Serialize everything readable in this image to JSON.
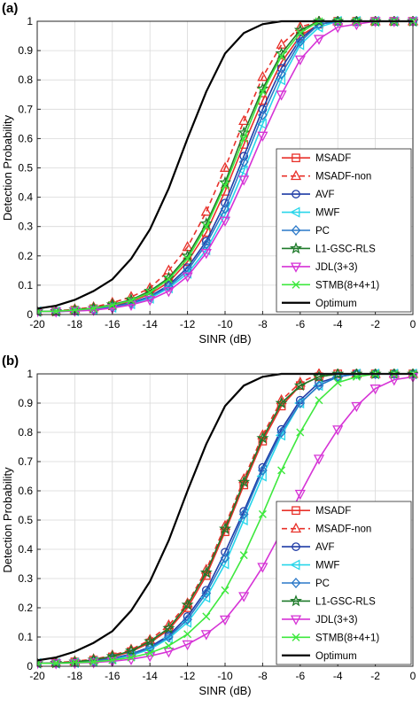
{
  "chart_data": [
    {
      "panel_label": "(a)",
      "type": "line",
      "xlabel": "SINR (dB)",
      "ylabel": "Detection Probability",
      "xlim": [
        -20,
        0
      ],
      "ylim": [
        0,
        1
      ],
      "grid": true,
      "legend_position": "bottom-right",
      "x": [
        -20,
        -19,
        -18,
        -17,
        -16,
        -15,
        -14,
        -13,
        -12,
        -11,
        -10,
        -9,
        -8,
        -7,
        -6,
        -5,
        -4,
        -3,
        -2,
        -1,
        0
      ],
      "xticks": [
        "-20",
        "-18",
        "-16",
        "-14",
        "-12",
        "-10",
        "-8",
        "-6",
        "-4",
        "-2",
        "0"
      ],
      "yticks": [
        "0",
        "0.1",
        "0.2",
        "0.3",
        "0.4",
        "0.5",
        "0.6",
        "0.7",
        "0.8",
        "0.9",
        "1"
      ],
      "series": [
        {
          "name": "MSADF",
          "color": "#e8312a",
          "dash": "solid",
          "marker": "square",
          "values": [
            0.01,
            0.01,
            0.015,
            0.02,
            0.03,
            0.045,
            0.07,
            0.11,
            0.18,
            0.28,
            0.42,
            0.58,
            0.73,
            0.86,
            0.95,
            0.99,
            1,
            1,
            1,
            1,
            1
          ]
        },
        {
          "name": "MSADF-non",
          "color": "#e8312a",
          "dash": "dashed",
          "marker": "triangle-up",
          "values": [
            0.01,
            0.012,
            0.018,
            0.025,
            0.04,
            0.06,
            0.09,
            0.15,
            0.23,
            0.35,
            0.5,
            0.66,
            0.81,
            0.92,
            0.98,
            1,
            1,
            1,
            1,
            1,
            1
          ]
        },
        {
          "name": "AVF",
          "color": "#1f3ba6",
          "dash": "solid",
          "marker": "circle",
          "values": [
            0.01,
            0.01,
            0.013,
            0.018,
            0.027,
            0.04,
            0.062,
            0.1,
            0.16,
            0.25,
            0.38,
            0.54,
            0.7,
            0.84,
            0.94,
            0.99,
            1,
            1,
            1,
            1,
            1
          ]
        },
        {
          "name": "MWF",
          "color": "#28d6ea",
          "dash": "solid",
          "marker": "triangle-left",
          "values": [
            0.01,
            0.01,
            0.012,
            0.016,
            0.024,
            0.036,
            0.055,
            0.09,
            0.14,
            0.22,
            0.34,
            0.49,
            0.65,
            0.8,
            0.92,
            0.98,
            1,
            1,
            1,
            1,
            1
          ]
        },
        {
          "name": "PC",
          "color": "#2a78c8",
          "dash": "solid",
          "marker": "diamond",
          "values": [
            0.01,
            0.01,
            0.013,
            0.018,
            0.026,
            0.038,
            0.06,
            0.095,
            0.15,
            0.24,
            0.36,
            0.52,
            0.68,
            0.82,
            0.93,
            0.99,
            1,
            1,
            1,
            1,
            1
          ]
        },
        {
          "name": "L1-GSC-RLS",
          "color": "#1e7a2a",
          "dash": "solid",
          "marker": "star",
          "values": [
            0.01,
            0.011,
            0.016,
            0.022,
            0.034,
            0.05,
            0.08,
            0.125,
            0.2,
            0.31,
            0.45,
            0.62,
            0.77,
            0.89,
            0.97,
            1,
            1,
            1,
            1,
            1,
            1
          ]
        },
        {
          "name": "JDL(3+3)",
          "color": "#d633d6",
          "dash": "solid",
          "marker": "triangle-down",
          "values": [
            0.01,
            0.01,
            0.012,
            0.015,
            0.022,
            0.033,
            0.05,
            0.08,
            0.13,
            0.21,
            0.32,
            0.46,
            0.61,
            0.75,
            0.87,
            0.94,
            0.98,
            0.99,
            1,
            1,
            1
          ]
        },
        {
          "name": "STMB(8+4+1)",
          "color": "#3ee83e",
          "dash": "solid",
          "marker": "x",
          "values": [
            0.01,
            0.011,
            0.015,
            0.021,
            0.032,
            0.048,
            0.075,
            0.12,
            0.19,
            0.3,
            0.44,
            0.6,
            0.76,
            0.88,
            0.96,
            1,
            1,
            1,
            1,
            1,
            1
          ]
        },
        {
          "name": "Optimum",
          "color": "#000000",
          "dash": "solid",
          "marker": "none",
          "values": [
            0.02,
            0.03,
            0.05,
            0.08,
            0.12,
            0.19,
            0.29,
            0.43,
            0.6,
            0.76,
            0.89,
            0.96,
            0.99,
            1,
            1,
            1,
            1,
            1,
            1,
            1,
            1
          ]
        }
      ]
    },
    {
      "panel_label": "(b)",
      "type": "line",
      "xlabel": "SINR (dB)",
      "ylabel": "Detection Probability",
      "xlim": [
        -20,
        0
      ],
      "ylim": [
        0,
        1
      ],
      "grid": true,
      "legend_position": "bottom-right",
      "x": [
        -20,
        -19,
        -18,
        -17,
        -16,
        -15,
        -14,
        -13,
        -12,
        -11,
        -10,
        -9,
        -8,
        -7,
        -6,
        -5,
        -4,
        -3,
        -2,
        -1,
        0
      ],
      "xticks": [
        "-20",
        "-18",
        "-16",
        "-14",
        "-12",
        "-10",
        "-8",
        "-6",
        "-4",
        "-2",
        "0"
      ],
      "yticks": [
        "0",
        "0.1",
        "0.2",
        "0.3",
        "0.4",
        "0.5",
        "0.6",
        "0.7",
        "0.8",
        "0.9",
        "1"
      ],
      "series": [
        {
          "name": "MSADF",
          "color": "#e8312a",
          "dash": "solid",
          "marker": "square",
          "values": [
            0.01,
            0.011,
            0.015,
            0.021,
            0.032,
            0.05,
            0.08,
            0.125,
            0.2,
            0.31,
            0.46,
            0.62,
            0.77,
            0.89,
            0.96,
            0.99,
            1,
            1,
            1,
            1,
            1
          ]
        },
        {
          "name": "MSADF-non",
          "color": "#e8312a",
          "dash": "dashed",
          "marker": "triangle-up",
          "values": [
            0.01,
            0.012,
            0.017,
            0.024,
            0.037,
            0.057,
            0.09,
            0.14,
            0.215,
            0.33,
            0.48,
            0.64,
            0.79,
            0.91,
            0.97,
            1,
            1,
            1,
            1,
            1,
            1
          ]
        },
        {
          "name": "AVF",
          "color": "#1f3ba6",
          "dash": "solid",
          "marker": "circle",
          "values": [
            0.01,
            0.01,
            0.013,
            0.018,
            0.027,
            0.042,
            0.066,
            0.105,
            0.17,
            0.26,
            0.39,
            0.53,
            0.68,
            0.81,
            0.91,
            0.97,
            0.99,
            1,
            1,
            1,
            1
          ]
        },
        {
          "name": "MWF",
          "color": "#28d6ea",
          "dash": "solid",
          "marker": "triangle-left",
          "values": [
            0.01,
            0.01,
            0.012,
            0.016,
            0.024,
            0.037,
            0.058,
            0.095,
            0.15,
            0.235,
            0.35,
            0.5,
            0.65,
            0.79,
            0.9,
            0.96,
            0.99,
            1,
            1,
            1,
            1
          ]
        },
        {
          "name": "PC",
          "color": "#2a78c8",
          "dash": "solid",
          "marker": "diamond",
          "values": [
            0.01,
            0.01,
            0.013,
            0.017,
            0.026,
            0.04,
            0.062,
            0.1,
            0.16,
            0.25,
            0.37,
            0.52,
            0.67,
            0.8,
            0.9,
            0.96,
            0.99,
            1,
            1,
            1,
            1
          ]
        },
        {
          "name": "L1-GSC-RLS",
          "color": "#1e7a2a",
          "dash": "solid",
          "marker": "star",
          "values": [
            0.01,
            0.011,
            0.015,
            0.022,
            0.034,
            0.053,
            0.085,
            0.13,
            0.21,
            0.32,
            0.47,
            0.63,
            0.78,
            0.9,
            0.96,
            0.99,
            1,
            1,
            1,
            1,
            1
          ]
        },
        {
          "name": "JDL(3+3)",
          "color": "#d633d6",
          "dash": "solid",
          "marker": "triangle-down",
          "values": [
            0.01,
            0.01,
            0.011,
            0.013,
            0.017,
            0.024,
            0.035,
            0.05,
            0.075,
            0.11,
            0.16,
            0.24,
            0.34,
            0.46,
            0.59,
            0.71,
            0.81,
            0.89,
            0.95,
            0.98,
            0.99
          ]
        },
        {
          "name": "STMB(8+4+1)",
          "color": "#3ee83e",
          "dash": "solid",
          "marker": "x",
          "values": [
            0.01,
            0.01,
            0.012,
            0.015,
            0.021,
            0.03,
            0.045,
            0.07,
            0.11,
            0.17,
            0.26,
            0.38,
            0.52,
            0.67,
            0.8,
            0.91,
            0.97,
            0.99,
            1,
            1,
            1
          ]
        },
        {
          "name": "Optimum",
          "color": "#000000",
          "dash": "solid",
          "marker": "none",
          "values": [
            0.02,
            0.03,
            0.05,
            0.08,
            0.12,
            0.19,
            0.29,
            0.43,
            0.6,
            0.76,
            0.89,
            0.96,
            0.99,
            1,
            1,
            1,
            1,
            1,
            1,
            1,
            1
          ]
        }
      ]
    }
  ]
}
